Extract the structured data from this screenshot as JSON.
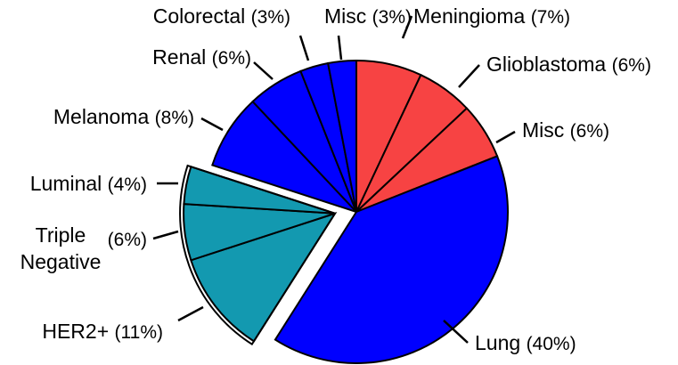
{
  "chart_data": {
    "type": "pie",
    "colors": {
      "red": "#f74343",
      "blue": "#0000ff",
      "teal": "#1399b0"
    },
    "slices": [
      {
        "name": [
          "Meningioma"
        ],
        "percent": "(7%)",
        "value": 7,
        "color": "red"
      },
      {
        "name": [
          "Glioblastoma"
        ],
        "percent": "(6%)",
        "value": 6,
        "color": "red"
      },
      {
        "name": [
          "Misc"
        ],
        "percent": "(6%)",
        "value": 6,
        "color": "red"
      },
      {
        "name": [
          "Lung"
        ],
        "percent": "(40%)",
        "value": 40,
        "color": "blue"
      },
      {
        "name": [
          "HER2+"
        ],
        "percent": "(11%)",
        "value": 11,
        "color": "teal",
        "exploded": true
      },
      {
        "name": [
          "Triple",
          "Negative"
        ],
        "percent": "(6%)",
        "value": 6,
        "color": "teal",
        "exploded": true
      },
      {
        "name": [
          "Luminal"
        ],
        "percent": "(4%)",
        "value": 4,
        "color": "teal",
        "exploded": true
      },
      {
        "name": [
          "Melanoma"
        ],
        "percent": "(8%)",
        "value": 8,
        "color": "blue"
      },
      {
        "name": [
          "Renal"
        ],
        "percent": "(6%)",
        "value": 6,
        "color": "blue"
      },
      {
        "name": [
          "Colorectal"
        ],
        "percent": "(3%)",
        "value": 3,
        "color": "blue"
      },
      {
        "name": [
          "Misc"
        ],
        "percent": "(3%)",
        "value": 3,
        "color": "blue"
      }
    ]
  }
}
